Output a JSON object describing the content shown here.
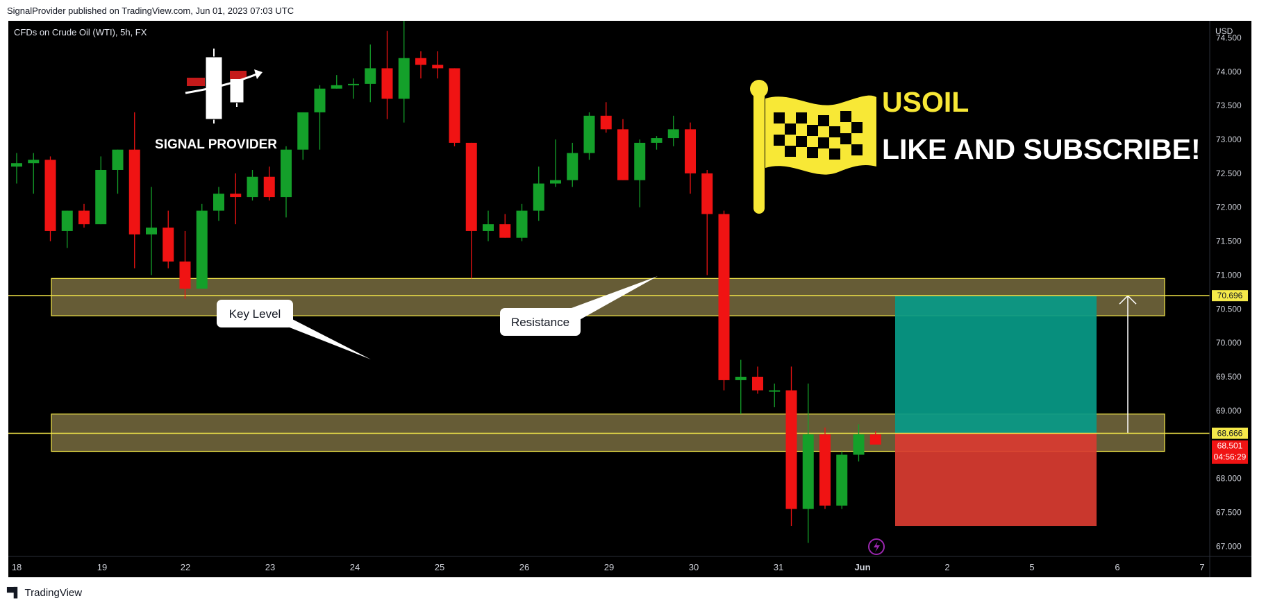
{
  "header": {
    "publisher_line": "SignalProvider published on TradingView.com, Jun 01, 2023 07:03 UTC"
  },
  "footer": {
    "brand": "TradingView"
  },
  "chart_data": {
    "type": "candlestick",
    "symbol_label": "CFDs on Crude Oil (WTI), 5h, FX",
    "currency": "USD",
    "ylim": [
      66.85,
      74.75
    ],
    "yticks": [
      "74.500",
      "74.000",
      "73.500",
      "73.000",
      "72.500",
      "72.000",
      "71.500",
      "71.000",
      "70.500",
      "70.000",
      "69.500",
      "69.000",
      "68.500",
      "68.000",
      "67.500",
      "67.000"
    ],
    "xticks": [
      "18",
      "19",
      "22",
      "23",
      "24",
      "25",
      "26",
      "29",
      "30",
      "31",
      "Jun",
      "2",
      "5",
      "6",
      "7"
    ],
    "candles": [
      {
        "o": 72.6,
        "h": 72.8,
        "l": 72.35,
        "c": 72.65
      },
      {
        "o": 72.65,
        "h": 72.8,
        "l": 72.2,
        "c": 72.7
      },
      {
        "o": 72.7,
        "h": 72.75,
        "l": 71.5,
        "c": 71.65
      },
      {
        "o": 71.65,
        "h": 71.95,
        "l": 71.4,
        "c": 71.95
      },
      {
        "o": 71.95,
        "h": 72.05,
        "l": 71.7,
        "c": 71.75
      },
      {
        "o": 71.75,
        "h": 72.75,
        "l": 71.75,
        "c": 72.55
      },
      {
        "o": 72.55,
        "h": 72.85,
        "l": 72.2,
        "c": 72.85
      },
      {
        "o": 72.85,
        "h": 73.4,
        "l": 71.1,
        "c": 71.6
      },
      {
        "o": 71.6,
        "h": 72.3,
        "l": 71.0,
        "c": 71.7
      },
      {
        "o": 71.7,
        "h": 71.95,
        "l": 71.1,
        "c": 71.2
      },
      {
        "o": 71.2,
        "h": 71.65,
        "l": 70.65,
        "c": 70.8
      },
      {
        "o": 70.8,
        "h": 72.05,
        "l": 70.8,
        "c": 71.95
      },
      {
        "o": 71.95,
        "h": 72.3,
        "l": 71.8,
        "c": 72.2
      },
      {
        "o": 72.2,
        "h": 72.5,
        "l": 71.75,
        "c": 72.15
      },
      {
        "o": 72.15,
        "h": 72.55,
        "l": 72.1,
        "c": 72.45
      },
      {
        "o": 72.45,
        "h": 72.6,
        "l": 72.1,
        "c": 72.15
      },
      {
        "o": 72.15,
        "h": 72.9,
        "l": 71.85,
        "c": 72.85
      },
      {
        "o": 72.85,
        "h": 73.4,
        "l": 72.7,
        "c": 73.4
      },
      {
        "o": 73.4,
        "h": 73.8,
        "l": 72.85,
        "c": 73.75
      },
      {
        "o": 73.75,
        "h": 73.95,
        "l": 73.75,
        "c": 73.8
      },
      {
        "o": 73.8,
        "h": 73.9,
        "l": 73.6,
        "c": 73.82
      },
      {
        "o": 73.82,
        "h": 74.4,
        "l": 73.55,
        "c": 74.05
      },
      {
        "o": 74.05,
        "h": 74.6,
        "l": 73.3,
        "c": 73.6
      },
      {
        "o": 73.6,
        "h": 74.75,
        "l": 73.25,
        "c": 74.2
      },
      {
        "o": 74.2,
        "h": 74.3,
        "l": 73.9,
        "c": 74.1
      },
      {
        "o": 74.1,
        "h": 74.3,
        "l": 73.9,
        "c": 74.05
      },
      {
        "o": 74.05,
        "h": 74.05,
        "l": 72.9,
        "c": 72.95
      },
      {
        "o": 72.95,
        "h": 72.95,
        "l": 70.95,
        "c": 71.65
      },
      {
        "o": 71.65,
        "h": 71.95,
        "l": 71.5,
        "c": 71.75
      },
      {
        "o": 71.75,
        "h": 71.9,
        "l": 71.55,
        "c": 71.55
      },
      {
        "o": 71.55,
        "h": 72.05,
        "l": 71.5,
        "c": 71.95
      },
      {
        "o": 71.95,
        "h": 72.6,
        "l": 71.8,
        "c": 72.35
      },
      {
        "o": 72.35,
        "h": 73.0,
        "l": 72.3,
        "c": 72.4
      },
      {
        "o": 72.4,
        "h": 72.95,
        "l": 72.3,
        "c": 72.8
      },
      {
        "o": 72.8,
        "h": 73.4,
        "l": 72.7,
        "c": 73.35
      },
      {
        "o": 73.35,
        "h": 73.55,
        "l": 73.1,
        "c": 73.15
      },
      {
        "o": 73.15,
        "h": 73.3,
        "l": 72.4,
        "c": 72.4
      },
      {
        "o": 72.4,
        "h": 73.0,
        "l": 72.0,
        "c": 72.95
      },
      {
        "o": 72.95,
        "h": 73.05,
        "l": 72.85,
        "c": 73.02
      },
      {
        "o": 73.02,
        "h": 73.35,
        "l": 72.9,
        "c": 73.15
      },
      {
        "o": 73.15,
        "h": 73.25,
        "l": 72.2,
        "c": 72.5
      },
      {
        "o": 72.5,
        "h": 72.55,
        "l": 71.0,
        "c": 71.9
      },
      {
        "o": 71.9,
        "h": 71.95,
        "l": 69.3,
        "c": 69.45
      },
      {
        "o": 69.45,
        "h": 69.75,
        "l": 68.95,
        "c": 69.5
      },
      {
        "o": 69.5,
        "h": 69.65,
        "l": 69.25,
        "c": 69.3
      },
      {
        "o": 69.3,
        "h": 69.4,
        "l": 69.05,
        "c": 69.3
      },
      {
        "o": 69.3,
        "h": 69.65,
        "l": 67.3,
        "c": 67.55
      },
      {
        "o": 67.55,
        "h": 69.4,
        "l": 67.05,
        "c": 68.65
      },
      {
        "o": 68.65,
        "h": 68.75,
        "l": 67.55,
        "c": 67.6
      },
      {
        "o": 67.6,
        "h": 68.4,
        "l": 67.55,
        "c": 68.35
      },
      {
        "o": 68.35,
        "h": 68.8,
        "l": 68.25,
        "c": 68.65
      },
      {
        "o": 68.65,
        "h": 68.7,
        "l": 68.55,
        "c": 68.5
      }
    ],
    "zones": [
      {
        "top": 70.95,
        "bottom": 70.4
      },
      {
        "top": 68.95,
        "bottom": 68.4
      }
    ],
    "hlines": [
      {
        "value": 70.696,
        "label": "70.696"
      },
      {
        "value": 68.666,
        "label": "68.666"
      }
    ],
    "position": {
      "entry": 68.666,
      "target": 70.696,
      "stop": 67.3
    },
    "current_price": {
      "value": 68.501,
      "label": "68.501",
      "timer": "04:56:29"
    },
    "annotations": {
      "key_level": "Key Level",
      "resistance": "Resistance",
      "signal_provider": "SIGNAL PROVIDER",
      "headline_symbol": "USOIL",
      "headline_cta": "LIKE AND SUBSCRIBE!"
    }
  },
  "colors": {
    "bull": "#14a02a",
    "bear": "#f01313",
    "background": "#000000",
    "zone_fill": "#665c36",
    "zone_line": "#f5e94a",
    "target_fill": "#089a86",
    "stop_fill": "#d83b30",
    "accent_yellow": "#f8e836"
  }
}
